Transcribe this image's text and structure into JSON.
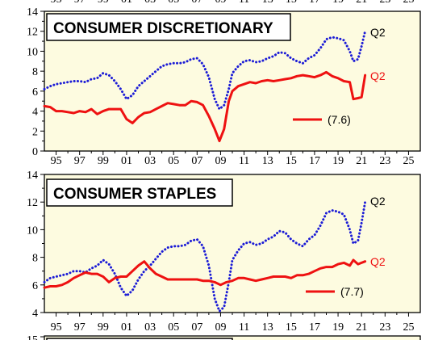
{
  "colors": {
    "panel_bg": "#fdfbe0",
    "red": "#ee1111",
    "blue": "#1c1cd6",
    "axis": "#000000"
  },
  "x_ticks": [
    "95",
    "97",
    "99",
    "01",
    "03",
    "05",
    "07",
    "09",
    "11",
    "13",
    "15",
    "17",
    "19",
    "21",
    "23",
    "25"
  ],
  "top_partial_ticks": [
    "95",
    "97",
    "99",
    "01",
    "03",
    "05",
    "07",
    "09",
    "11",
    "13",
    "15",
    "17",
    "19",
    "21",
    "23",
    "25"
  ],
  "next_panel_partial_tick": "15",
  "chart_data": [
    {
      "type": "line",
      "title": "CONSUMER DISCRETIONARY",
      "xlim": [
        1994,
        2026
      ],
      "ylim": [
        0,
        14
      ],
      "yticks": [
        0,
        2,
        4,
        6,
        8,
        10,
        12,
        14
      ],
      "grid": false,
      "legend": "right",
      "legend_label": "(7.6)",
      "series": [
        {
          "color": "red",
          "style": "solid",
          "end_label": "Q2",
          "points": [
            [
              1994.0,
              4.5
            ],
            [
              1994.5,
              4.4
            ],
            [
              1995.0,
              4.0
            ],
            [
              1995.5,
              4.0
            ],
            [
              1996.0,
              3.9
            ],
            [
              1996.5,
              3.8
            ],
            [
              1997.0,
              4.0
            ],
            [
              1997.5,
              3.9
            ],
            [
              1998.0,
              4.2
            ],
            [
              1998.5,
              3.7
            ],
            [
              1999.0,
              4.0
            ],
            [
              1999.5,
              4.2
            ],
            [
              2000.0,
              4.2
            ],
            [
              2000.5,
              4.2
            ],
            [
              2001.0,
              3.2
            ],
            [
              2001.5,
              2.8
            ],
            [
              2002.0,
              3.4
            ],
            [
              2002.5,
              3.8
            ],
            [
              2003.0,
              3.9
            ],
            [
              2003.5,
              4.2
            ],
            [
              2004.0,
              4.5
            ],
            [
              2004.5,
              4.8
            ],
            [
              2005.0,
              4.7
            ],
            [
              2005.5,
              4.6
            ],
            [
              2006.0,
              4.6
            ],
            [
              2006.5,
              5.0
            ],
            [
              2007.0,
              4.9
            ],
            [
              2007.5,
              4.6
            ],
            [
              2008.0,
              3.5
            ],
            [
              2008.5,
              2.2
            ],
            [
              2008.9,
              1.0
            ],
            [
              2009.3,
              2.2
            ],
            [
              2009.7,
              5.0
            ],
            [
              2010.0,
              6.0
            ],
            [
              2010.5,
              6.5
            ],
            [
              2011.0,
              6.7
            ],
            [
              2011.5,
              6.9
            ],
            [
              2012.0,
              6.8
            ],
            [
              2012.5,
              7.0
            ],
            [
              2013.0,
              7.1
            ],
            [
              2013.5,
              7.0
            ],
            [
              2014.0,
              7.1
            ],
            [
              2014.5,
              7.2
            ],
            [
              2015.0,
              7.3
            ],
            [
              2015.5,
              7.5
            ],
            [
              2016.0,
              7.6
            ],
            [
              2016.5,
              7.5
            ],
            [
              2017.0,
              7.4
            ],
            [
              2017.5,
              7.6
            ],
            [
              2018.0,
              7.9
            ],
            [
              2018.5,
              7.5
            ],
            [
              2019.0,
              7.3
            ],
            [
              2019.5,
              7.0
            ],
            [
              2020.0,
              6.9
            ],
            [
              2020.3,
              5.2
            ],
            [
              2020.7,
              5.3
            ],
            [
              2021.0,
              5.4
            ],
            [
              2021.3,
              7.6
            ]
          ]
        },
        {
          "color": "blue",
          "style": "dotted",
          "end_label": "Q2",
          "points": [
            [
              1994.0,
              6.2
            ],
            [
              1994.5,
              6.5
            ],
            [
              1995.0,
              6.7
            ],
            [
              1995.5,
              6.8
            ],
            [
              1996.0,
              6.9
            ],
            [
              1996.5,
              7.0
            ],
            [
              1997.0,
              7.0
            ],
            [
              1997.5,
              6.9
            ],
            [
              1998.0,
              7.2
            ],
            [
              1998.5,
              7.3
            ],
            [
              1999.0,
              7.8
            ],
            [
              1999.5,
              7.6
            ],
            [
              2000.0,
              7.0
            ],
            [
              2000.5,
              6.2
            ],
            [
              2001.0,
              5.2
            ],
            [
              2001.5,
              5.6
            ],
            [
              2002.0,
              6.5
            ],
            [
              2002.5,
              7.0
            ],
            [
              2003.0,
              7.5
            ],
            [
              2003.5,
              8.0
            ],
            [
              2004.0,
              8.5
            ],
            [
              2004.5,
              8.7
            ],
            [
              2005.0,
              8.8
            ],
            [
              2005.5,
              8.8
            ],
            [
              2006.0,
              8.9
            ],
            [
              2006.5,
              9.2
            ],
            [
              2007.0,
              9.3
            ],
            [
              2007.5,
              8.7
            ],
            [
              2008.0,
              7.4
            ],
            [
              2008.5,
              5.2
            ],
            [
              2008.9,
              4.2
            ],
            [
              2009.3,
              4.6
            ],
            [
              2009.7,
              6.2
            ],
            [
              2010.0,
              7.8
            ],
            [
              2010.5,
              8.5
            ],
            [
              2011.0,
              9.0
            ],
            [
              2011.5,
              9.1
            ],
            [
              2012.0,
              8.9
            ],
            [
              2012.5,
              9.0
            ],
            [
              2013.0,
              9.3
            ],
            [
              2013.5,
              9.5
            ],
            [
              2014.0,
              9.9
            ],
            [
              2014.5,
              9.8
            ],
            [
              2015.0,
              9.3
            ],
            [
              2015.5,
              9.0
            ],
            [
              2016.0,
              8.8
            ],
            [
              2016.5,
              9.3
            ],
            [
              2017.0,
              9.6
            ],
            [
              2017.5,
              10.3
            ],
            [
              2018.0,
              11.2
            ],
            [
              2018.5,
              11.4
            ],
            [
              2019.0,
              11.3
            ],
            [
              2019.5,
              11.1
            ],
            [
              2020.0,
              10.0
            ],
            [
              2020.3,
              9.0
            ],
            [
              2020.7,
              9.2
            ],
            [
              2021.0,
              10.5
            ],
            [
              2021.3,
              12.0
            ]
          ]
        }
      ]
    },
    {
      "type": "line",
      "title": "CONSUMER STAPLES",
      "xlim": [
        1994,
        2026
      ],
      "ylim": [
        4,
        14
      ],
      "yticks": [
        4,
        6,
        8,
        10,
        12,
        14
      ],
      "grid": false,
      "legend": "right",
      "legend_label": "(7.7)",
      "series": [
        {
          "color": "red",
          "style": "solid",
          "end_label": "Q2",
          "points": [
            [
              1994.0,
              5.8
            ],
            [
              1994.5,
              5.9
            ],
            [
              1995.0,
              5.9
            ],
            [
              1995.5,
              6.0
            ],
            [
              1996.0,
              6.2
            ],
            [
              1996.5,
              6.5
            ],
            [
              1997.0,
              6.7
            ],
            [
              1997.5,
              6.9
            ],
            [
              1998.0,
              6.8
            ],
            [
              1998.5,
              6.8
            ],
            [
              1999.0,
              6.6
            ],
            [
              1999.5,
              6.2
            ],
            [
              2000.0,
              6.5
            ],
            [
              2000.5,
              6.6
            ],
            [
              2001.0,
              6.6
            ],
            [
              2001.5,
              7.0
            ],
            [
              2002.0,
              7.4
            ],
            [
              2002.5,
              7.7
            ],
            [
              2003.0,
              7.2
            ],
            [
              2003.5,
              6.8
            ],
            [
              2004.0,
              6.6
            ],
            [
              2004.5,
              6.4
            ],
            [
              2005.0,
              6.4
            ],
            [
              2005.5,
              6.4
            ],
            [
              2006.0,
              6.4
            ],
            [
              2006.5,
              6.4
            ],
            [
              2007.0,
              6.4
            ],
            [
              2007.5,
              6.3
            ],
            [
              2008.0,
              6.3
            ],
            [
              2008.5,
              6.2
            ],
            [
              2009.0,
              6.0
            ],
            [
              2009.5,
              6.2
            ],
            [
              2010.0,
              6.3
            ],
            [
              2010.5,
              6.5
            ],
            [
              2011.0,
              6.5
            ],
            [
              2011.5,
              6.4
            ],
            [
              2012.0,
              6.3
            ],
            [
              2012.5,
              6.4
            ],
            [
              2013.0,
              6.5
            ],
            [
              2013.5,
              6.6
            ],
            [
              2014.0,
              6.6
            ],
            [
              2014.5,
              6.6
            ],
            [
              2015.0,
              6.5
            ],
            [
              2015.5,
              6.7
            ],
            [
              2016.0,
              6.7
            ],
            [
              2016.5,
              6.8
            ],
            [
              2017.0,
              7.0
            ],
            [
              2017.5,
              7.2
            ],
            [
              2018.0,
              7.3
            ],
            [
              2018.5,
              7.3
            ],
            [
              2019.0,
              7.5
            ],
            [
              2019.5,
              7.6
            ],
            [
              2020.0,
              7.4
            ],
            [
              2020.3,
              7.8
            ],
            [
              2020.7,
              7.5
            ],
            [
              2021.0,
              7.6
            ],
            [
              2021.3,
              7.7
            ]
          ]
        },
        {
          "color": "blue",
          "style": "dotted",
          "end_label": "Q2",
          "points": [
            [
              1994.0,
              6.2
            ],
            [
              1994.5,
              6.5
            ],
            [
              1995.0,
              6.6
            ],
            [
              1995.5,
              6.7
            ],
            [
              1996.0,
              6.8
            ],
            [
              1996.5,
              7.0
            ],
            [
              1997.0,
              7.0
            ],
            [
              1997.5,
              6.9
            ],
            [
              1998.0,
              7.2
            ],
            [
              1998.5,
              7.4
            ],
            [
              1999.0,
              7.8
            ],
            [
              1999.5,
              7.5
            ],
            [
              2000.0,
              6.8
            ],
            [
              2000.5,
              5.8
            ],
            [
              2001.0,
              5.2
            ],
            [
              2001.5,
              5.6
            ],
            [
              2002.0,
              6.4
            ],
            [
              2002.5,
              7.0
            ],
            [
              2003.0,
              7.4
            ],
            [
              2003.5,
              7.9
            ],
            [
              2004.0,
              8.4
            ],
            [
              2004.5,
              8.7
            ],
            [
              2005.0,
              8.8
            ],
            [
              2005.5,
              8.8
            ],
            [
              2006.0,
              8.9
            ],
            [
              2006.5,
              9.2
            ],
            [
              2007.0,
              9.3
            ],
            [
              2007.5,
              8.8
            ],
            [
              2008.0,
              7.4
            ],
            [
              2008.5,
              5.0
            ],
            [
              2008.9,
              4.1
            ],
            [
              2009.3,
              4.4
            ],
            [
              2009.7,
              6.2
            ],
            [
              2010.0,
              7.8
            ],
            [
              2010.5,
              8.5
            ],
            [
              2011.0,
              9.0
            ],
            [
              2011.5,
              9.1
            ],
            [
              2012.0,
              8.9
            ],
            [
              2012.5,
              9.0
            ],
            [
              2013.0,
              9.3
            ],
            [
              2013.5,
              9.5
            ],
            [
              2014.0,
              9.9
            ],
            [
              2014.5,
              9.8
            ],
            [
              2015.0,
              9.3
            ],
            [
              2015.5,
              9.0
            ],
            [
              2016.0,
              8.8
            ],
            [
              2016.5,
              9.3
            ],
            [
              2017.0,
              9.6
            ],
            [
              2017.5,
              10.3
            ],
            [
              2018.0,
              11.2
            ],
            [
              2018.5,
              11.4
            ],
            [
              2019.0,
              11.3
            ],
            [
              2019.5,
              11.1
            ],
            [
              2020.0,
              10.0
            ],
            [
              2020.3,
              9.0
            ],
            [
              2020.7,
              9.2
            ],
            [
              2021.0,
              10.5
            ],
            [
              2021.3,
              12.0
            ]
          ]
        }
      ]
    }
  ]
}
